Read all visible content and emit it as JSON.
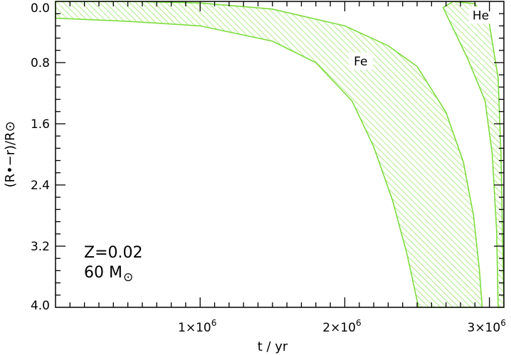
{
  "chart_data": {
    "type": "area",
    "xlabel": "t / yr",
    "ylabel": "(R•−r)/R⊙",
    "xlim": [
      0,
      3100000
    ],
    "ylim": [
      4.0,
      0.0
    ],
    "y_inverted": true,
    "yticks": [
      0.0,
      0.8,
      1.6,
      2.4,
      3.2,
      4.0
    ],
    "ytick_labels": [
      "0.0",
      "0.8",
      "1.6",
      "2.4",
      "3.2",
      "4.0"
    ],
    "xticks": [
      1000000,
      2000000,
      3000000
    ],
    "xtick_labels": [
      "1×10",
      "2×10",
      "3×10"
    ],
    "xtick_exponent": "6",
    "grid": false,
    "annotations": [
      {
        "line1": "Z=0.02",
        "line2_prefix": "60 M",
        "line2_symbol": "⊙"
      }
    ],
    "series": [
      {
        "name": "Fe",
        "color": "#7ddc3c",
        "fill": "hatched",
        "upper_boundary": [
          {
            "t": 0,
            "depth": 0.0
          },
          {
            "t": 1000000,
            "depth": 0.0
          },
          {
            "t": 2000000,
            "depth": 0.0
          },
          {
            "t": 2950000,
            "depth": 0.0
          }
        ],
        "outer_edge": [
          {
            "t": 0,
            "depth": 0.0
          },
          {
            "t": 500000,
            "depth": 0.0
          },
          {
            "t": 1000000,
            "depth": 0.02
          },
          {
            "t": 1500000,
            "depth": 0.1
          },
          {
            "t": 2000000,
            "depth": 0.32
          },
          {
            "t": 2300000,
            "depth": 0.58
          },
          {
            "t": 2500000,
            "depth": 0.85
          },
          {
            "t": 2700000,
            "depth": 1.45
          },
          {
            "t": 2820000,
            "depth": 2.1
          },
          {
            "t": 2890000,
            "depth": 2.8
          },
          {
            "t": 2930000,
            "depth": 3.5
          },
          {
            "t": 2950000,
            "depth": 4.0
          }
        ],
        "inner_edge": [
          {
            "t": 0,
            "depth": 0.22
          },
          {
            "t": 500000,
            "depth": 0.26
          },
          {
            "t": 1000000,
            "depth": 0.32
          },
          {
            "t": 1500000,
            "depth": 0.52
          },
          {
            "t": 1800000,
            "depth": 0.8
          },
          {
            "t": 2050000,
            "depth": 1.3
          },
          {
            "t": 2200000,
            "depth": 1.9
          },
          {
            "t": 2330000,
            "depth": 2.6
          },
          {
            "t": 2430000,
            "depth": 3.3
          },
          {
            "t": 2510000,
            "depth": 4.0
          }
        ]
      },
      {
        "name": "He",
        "color": "#7ddc3c",
        "fill": "hatched",
        "outer_edge": [
          {
            "t": 2680000,
            "depth": 0.08
          },
          {
            "t": 2750000,
            "depth": 0.0
          },
          {
            "t": 2900000,
            "depth": 0.03
          },
          {
            "t": 3000000,
            "depth": 0.3
          },
          {
            "t": 3060000,
            "depth": 1.0
          },
          {
            "t": 3080000,
            "depth": 2.0
          },
          {
            "t": 3090000,
            "depth": 3.0
          },
          {
            "t": 3100000,
            "depth": 4.0
          }
        ],
        "inner_edge": [
          {
            "t": 2680000,
            "depth": 0.08
          },
          {
            "t": 2720000,
            "depth": 0.24
          },
          {
            "t": 2850000,
            "depth": 0.75
          },
          {
            "t": 2970000,
            "depth": 1.3
          },
          {
            "t": 3020000,
            "depth": 2.0
          },
          {
            "t": 3050000,
            "depth": 3.0
          },
          {
            "t": 3060000,
            "depth": 4.0
          }
        ]
      }
    ],
    "region_labels": [
      {
        "text": "Fe",
        "t": 2110000,
        "depth": 0.78
      },
      {
        "text": "He",
        "t": 2940000,
        "depth": 0.18
      }
    ]
  }
}
